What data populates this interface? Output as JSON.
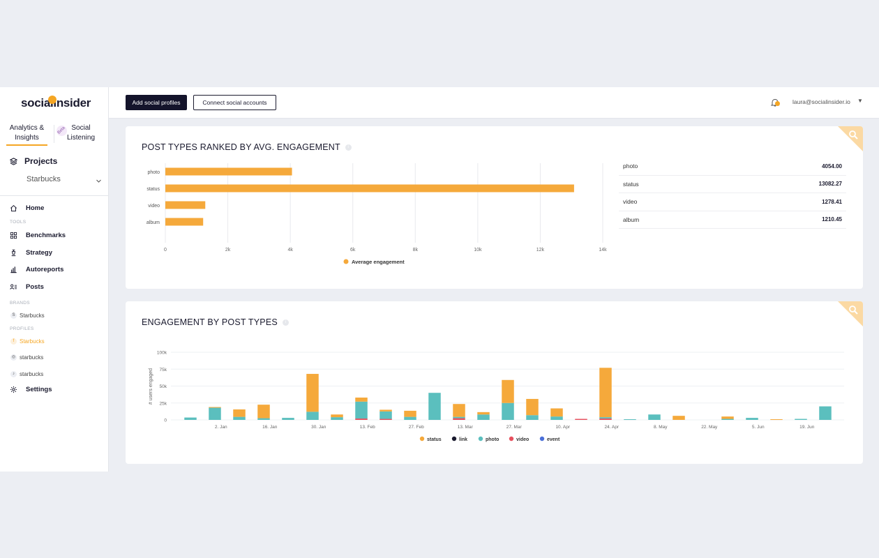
{
  "sidebar": {
    "logo": "socialinsider",
    "tab_analytics_line1": "Analytics &",
    "tab_analytics_line2": "Insights",
    "beta": "Beta",
    "tab_listening_line1": "Social",
    "tab_listening_line2": "Listening",
    "projects_label": "Projects",
    "project_selected": "Starbucks",
    "home": "Home",
    "tools_heading": "TOOLS",
    "benchmarks": "Benchmarks",
    "strategy": "Strategy",
    "autoreports": "Autoreports",
    "posts": "Posts",
    "brands_heading": "BRANDS",
    "brand_1": "Starbucks",
    "profiles_heading": "PROFILES",
    "profile_facebook": "Starbucks",
    "profile_instagram": "starbucks",
    "profile_tiktok": "starbucks",
    "settings": "Settings"
  },
  "topbar": {
    "add_profiles": "Add social profiles",
    "connect_accounts": "Connect social accounts",
    "user_email": "laura@socialinsider.io"
  },
  "card1": {
    "title": "POST TYPES RANKED BY AVG. ENGAGEMENT",
    "table": [
      {
        "name": "photo",
        "value": "4054.00"
      },
      {
        "name": "status",
        "value": "13082.27"
      },
      {
        "name": "video",
        "value": "1278.41"
      },
      {
        "name": "album",
        "value": "1210.45"
      }
    ]
  },
  "card2": {
    "title": "ENGAGEMENT BY POST TYPES"
  },
  "colors": {
    "status": "#f5a93b",
    "link": "#1a1a2e",
    "photo": "#5bbfbe",
    "video": "#e6505e",
    "event": "#4a6fd8",
    "accent": "#f5a623"
  },
  "chart_data": [
    {
      "type": "bar",
      "orientation": "horizontal",
      "categories": [
        "photo",
        "status",
        "video",
        "album"
      ],
      "series": [
        {
          "name": "Average engagement",
          "values": [
            4054.0,
            13082.27,
            1278.41,
            1210.45
          ]
        }
      ],
      "xlim": [
        0,
        14000
      ],
      "x_ticks": [
        "0",
        "2k",
        "4k",
        "6k",
        "8k",
        "10k",
        "12k",
        "14k"
      ],
      "grid": true,
      "legend": "bottom-center"
    },
    {
      "type": "bar",
      "stacked": true,
      "ylabel": "# users engaged",
      "ylim": [
        0,
        100000
      ],
      "y_ticks": [
        "0",
        "25k",
        "50k",
        "75k",
        "100k"
      ],
      "x_ticks": [
        "2. Jan",
        "16. Jan",
        "30. Jan",
        "13. Feb",
        "27. Feb",
        "13. Mar",
        "27. Mar",
        "10. Apr",
        "24. Apr",
        "8. May",
        "22. May",
        "5. Jun",
        "19. Jun"
      ],
      "legend": "bottom-center",
      "series_names": [
        "status",
        "link",
        "photo",
        "video",
        "event"
      ],
      "bars": [
        {
          "photo": 3500,
          "status": 0,
          "video": 0
        },
        {
          "photo": 18000,
          "status": 1000,
          "video": 0
        },
        {
          "photo": 4500,
          "status": 11000,
          "video": 0
        },
        {
          "photo": 2500,
          "status": 20000,
          "video": 0
        },
        {
          "photo": 3000,
          "status": 0,
          "video": 0
        },
        {
          "photo": 12000,
          "status": 56000,
          "video": 0
        },
        {
          "photo": 4000,
          "status": 4000,
          "video": 0
        },
        {
          "photo": 25000,
          "status": 6000,
          "video": 2000
        },
        {
          "photo": 11000,
          "status": 2500,
          "video": 1500
        },
        {
          "photo": 4500,
          "status": 9000,
          "video": 0
        },
        {
          "photo": 40000,
          "status": 0,
          "video": 0
        },
        {
          "photo": 2000,
          "status": 19000,
          "video": 2500
        },
        {
          "photo": 8000,
          "status": 3500,
          "video": 0
        },
        {
          "photo": 25000,
          "status": 34000,
          "video": 0
        },
        {
          "photo": 7000,
          "status": 24000,
          "video": 0
        },
        {
          "photo": 5000,
          "status": 12000,
          "video": 0
        },
        {
          "photo": 0,
          "status": 0,
          "video": 1500
        },
        {
          "photo": 2000,
          "status": 73000,
          "video": 2000
        },
        {
          "photo": 1000,
          "status": 0,
          "video": 0
        },
        {
          "photo": 8000,
          "status": 0,
          "video": 0
        },
        {
          "photo": 0,
          "status": 6000,
          "video": 0
        },
        {
          "photo": 0,
          "status": 0,
          "video": 0
        },
        {
          "photo": 1500,
          "status": 3500,
          "video": 0
        },
        {
          "photo": 3000,
          "status": 0,
          "video": 0
        },
        {
          "photo": 0,
          "status": 1000,
          "video": 0
        },
        {
          "photo": 1500,
          "status": 0,
          "video": 0
        },
        {
          "photo": 20000,
          "status": 0,
          "video": 0
        }
      ]
    }
  ]
}
